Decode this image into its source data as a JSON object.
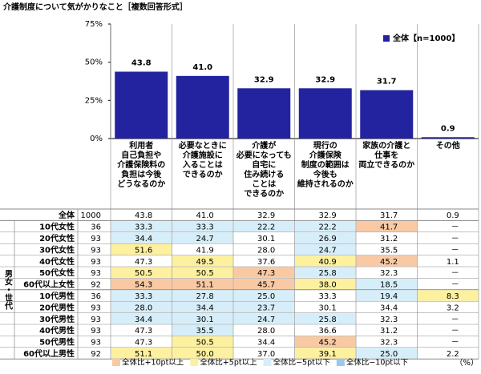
{
  "chart_data": {
    "type": "bar",
    "title": "介護制度について気がかりなこと［複数回答形式］",
    "categories": [
      "利用者\n自己負担や\n介護保険料の\n負担は今後\nどうなるのか",
      "必要なときに\n介護施設に\n入ることは\nできるのか",
      "介護が\n必要になっても\n自宅に\n住み続ける\nことは\nできるのか",
      "現行の\n介護保険\n制度の範囲は\n今後も\n維持されるのか",
      "家族の介護と\n仕事を\n両立できるのか",
      "その他"
    ],
    "series": [
      {
        "name": "全体【n=1000】",
        "color": "#2323a0",
        "values": [
          43.8,
          41.0,
          32.9,
          32.9,
          31.7,
          0.9
        ],
        "value_labels": [
          "43.8",
          "41.0",
          "32.9",
          "32.9",
          "31.7",
          "0.9"
        ]
      }
    ],
    "ylim": [
      0,
      75
    ],
    "yticks": [
      {
        "value": 0,
        "label": "0%"
      },
      {
        "value": 25,
        "label": "25%"
      },
      {
        "value": 50,
        "label": "50%"
      },
      {
        "value": 75,
        "label": "75%"
      }
    ],
    "legend": "upper right"
  },
  "table": {
    "group_label": "男女・世代",
    "unit": "（%）",
    "total": {
      "label": "全体",
      "n": "1000",
      "values": [
        "43.8",
        "41.0",
        "32.9",
        "32.9",
        "31.7",
        "0.9"
      ]
    },
    "rows": [
      {
        "label": "10代女性",
        "n": "36",
        "values": [
          "33.3",
          "33.3",
          "22.2",
          "22.2",
          "41.7",
          "－"
        ]
      },
      {
        "label": "20代女性",
        "n": "93",
        "values": [
          "34.4",
          "24.7",
          "30.1",
          "26.9",
          "31.2",
          "－"
        ]
      },
      {
        "label": "30代女性",
        "n": "93",
        "values": [
          "51.6",
          "41.9",
          "28.0",
          "24.7",
          "35.5",
          "－"
        ]
      },
      {
        "label": "40代女性",
        "n": "93",
        "values": [
          "47.3",
          "49.5",
          "37.6",
          "40.9",
          "45.2",
          "1.1"
        ]
      },
      {
        "label": "50代女性",
        "n": "93",
        "values": [
          "50.5",
          "50.5",
          "47.3",
          "25.8",
          "32.3",
          "－"
        ]
      },
      {
        "label": "60代以上女性",
        "n": "92",
        "values": [
          "54.3",
          "51.1",
          "45.7",
          "38.0",
          "18.5",
          "－"
        ]
      },
      {
        "label": "10代男性",
        "n": "36",
        "values": [
          "33.3",
          "27.8",
          "25.0",
          "33.3",
          "19.4",
          "8.3"
        ]
      },
      {
        "label": "20代男性",
        "n": "93",
        "values": [
          "28.0",
          "34.4",
          "23.7",
          "30.1",
          "34.4",
          "3.2"
        ]
      },
      {
        "label": "30代男性",
        "n": "93",
        "values": [
          "34.4",
          "30.1",
          "24.7",
          "25.8",
          "32.3",
          "－"
        ]
      },
      {
        "label": "40代男性",
        "n": "93",
        "values": [
          "47.3",
          "35.5",
          "28.0",
          "36.6",
          "31.2",
          "－"
        ]
      },
      {
        "label": "50代男性",
        "n": "93",
        "values": [
          "47.3",
          "50.5",
          "34.4",
          "45.2",
          "32.3",
          "－"
        ]
      },
      {
        "label": "60代以上男性",
        "n": "92",
        "values": [
          "51.1",
          "50.0",
          "37.0",
          "39.1",
          "25.0",
          "2.2"
        ]
      }
    ],
    "highlight_rules": [
      {
        "label": "全体比+10pt以上",
        "color": "#f9c9a3",
        "min": 10
      },
      {
        "label": "全体比+5pt以上",
        "color": "#fdf09e",
        "min": 5
      },
      {
        "label": "全体比−5pt以下",
        "color": "#d6eef9",
        "max": -5
      },
      {
        "label": "全体比−10pt以下",
        "color": "#9cc6ea",
        "max": -10
      }
    ]
  }
}
